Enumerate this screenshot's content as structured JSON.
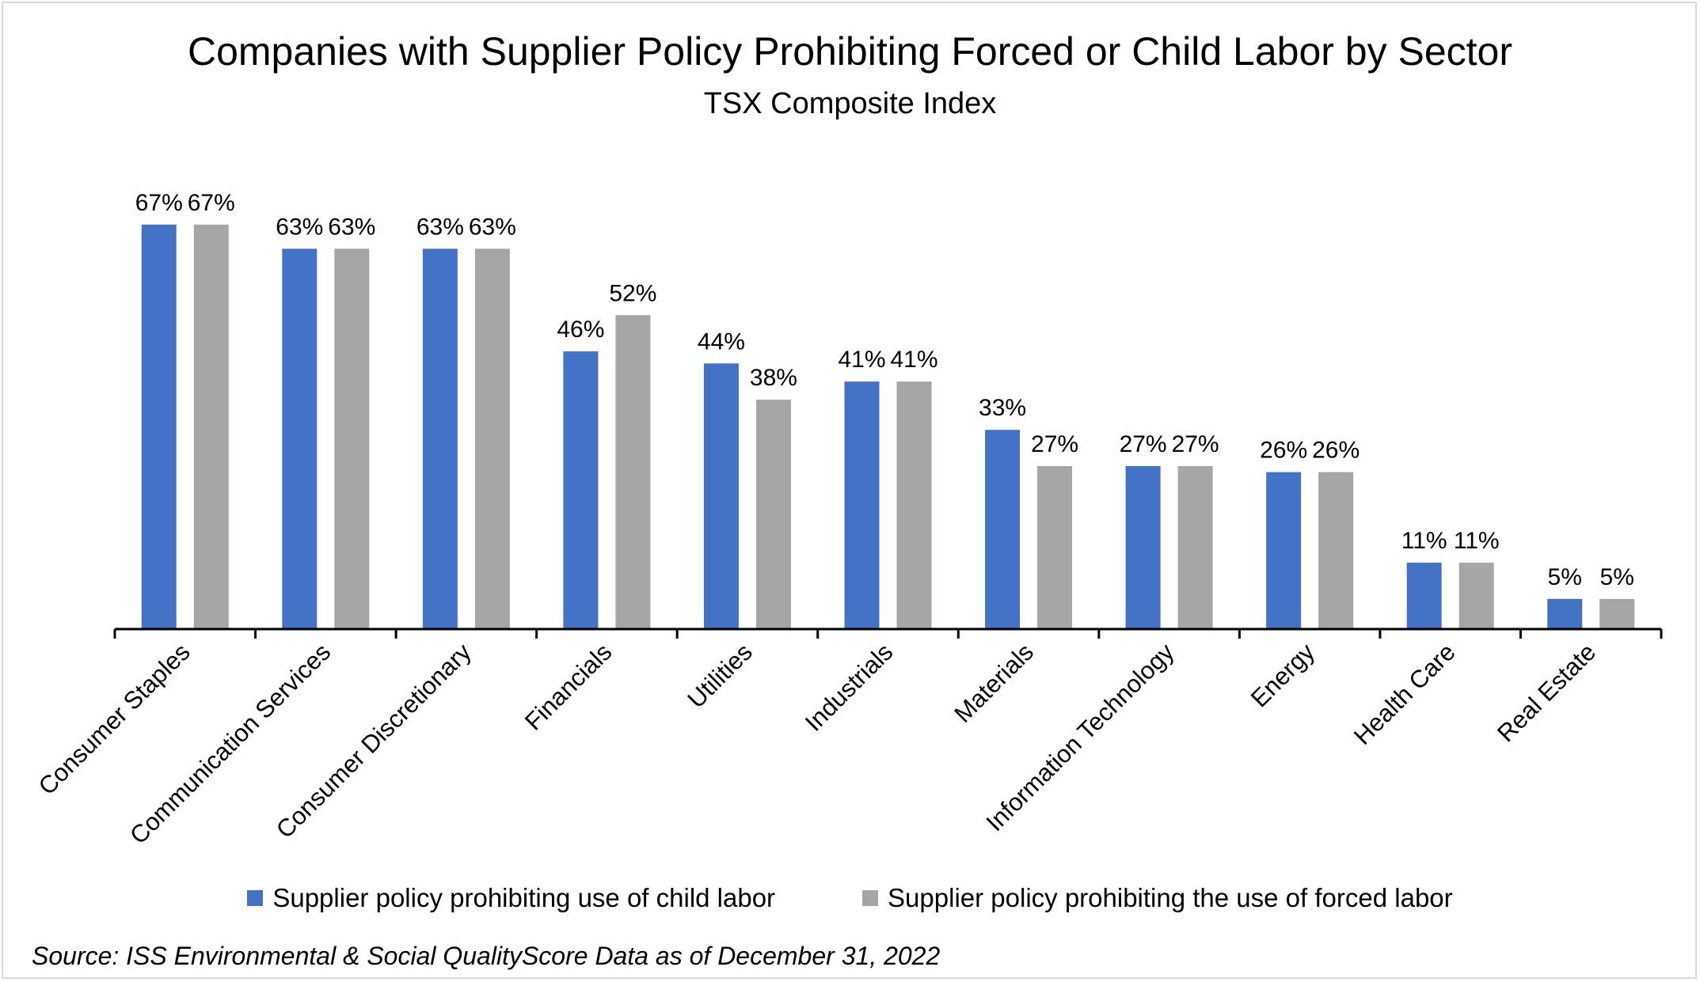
{
  "chart_data": {
    "type": "bar",
    "title": "Companies with Supplier Policy Prohibiting Forced or Child Labor by Sector",
    "subtitle": "TSX Composite Index",
    "categories": [
      "Consumer Staples",
      "Communication Services",
      "Consumer Discretionary",
      "Financials",
      "Utilities",
      "Industrials",
      "Materials",
      "Information Technology",
      "Energy",
      "Health Care",
      "Real Estate"
    ],
    "series": [
      {
        "name": "Supplier policy prohibiting use of child labor",
        "color": "#4472c4",
        "values": [
          67,
          63,
          63,
          46,
          44,
          41,
          33,
          27,
          26,
          11,
          5
        ],
        "labels": [
          "67%",
          "63%",
          "63%",
          "46%",
          "44%",
          "41%",
          "33%",
          "27%",
          "26%",
          "11%",
          "5%"
        ]
      },
      {
        "name": "Supplier policy prohibiting the use of forced labor",
        "color": "#a5a5a5",
        "values": [
          67,
          63,
          63,
          52,
          38,
          41,
          27,
          27,
          26,
          11,
          5
        ],
        "labels": [
          "67%",
          "63%",
          "63%",
          "52%",
          "38%",
          "41%",
          "27%",
          "27%",
          "26%",
          "11%",
          "5%"
        ]
      }
    ],
    "ylim": [
      0,
      70
    ],
    "grid": false,
    "legend": "bottom",
    "source": "Source: ISS Environmental & Social QualityScore Data as of December 31, 2022"
  }
}
